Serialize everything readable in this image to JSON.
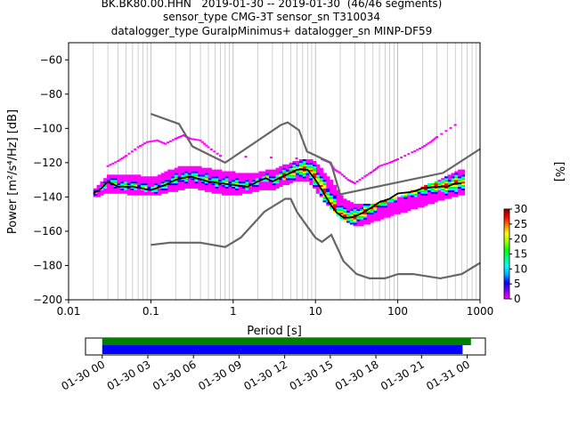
{
  "title_lines": [
    "BK.BK80.00.HHN   2019-01-30 -- 2019-01-30  (46/46 segments)",
    "sensor_type CMG-3T sensor_sn T310034",
    "datalogger_type GuralpMinimus+ datalogger_sn MINP-DF59"
  ],
  "chart_data": {
    "type": "heatmap",
    "title": "BK.BK80.00.HHN   2019-01-30 -- 2019-01-30  (46/46 segments)",
    "xlabel": "Period [s]",
    "ylabel": "Power [m²/s⁴/Hz] [dB]",
    "xscale": "log",
    "xlim": [
      0.01,
      1000
    ],
    "ylim": [
      -200,
      -50
    ],
    "xticks": [
      0.01,
      0.1,
      1,
      10,
      100,
      1000
    ],
    "xtick_labels": [
      "0.01",
      "0.1",
      "1",
      "10",
      "100",
      "1000"
    ],
    "yticks": [
      -60,
      -80,
      -100,
      -120,
      -140,
      -160,
      -180,
      -200
    ],
    "ytick_labels": [
      "−60",
      "−80",
      "−100",
      "−120",
      "−140",
      "−160",
      "−180",
      "−200"
    ],
    "grid": "x-minor",
    "colorbar": {
      "label": "[%]",
      "min": 0,
      "max": 30,
      "ticks": [
        "0",
        "5",
        "10",
        "15",
        "20",
        "25",
        "30"
      ],
      "colors": [
        "#ffffff",
        "#ff00ff",
        "#0000ff",
        "#00ffff",
        "#00ff00",
        "#ffff00",
        "#ff0000",
        "#800000"
      ]
    },
    "mean_curve": {
      "color": "#000000",
      "x": [
        0.02,
        0.025,
        0.03,
        0.04,
        0.06,
        0.1,
        0.15,
        0.2,
        0.3,
        0.5,
        1,
        1.5,
        2,
        2.5,
        3,
        4,
        5,
        6,
        8,
        10,
        12,
        15,
        18,
        22,
        28,
        35,
        45,
        60,
        80,
        100,
        150,
        200,
        300,
        400,
        500,
        600
      ],
      "y": [
        -138,
        -135,
        -131,
        -134,
        -134,
        -136,
        -133,
        -130,
        -128,
        -131,
        -133,
        -134,
        -131,
        -129,
        -131,
        -128,
        -126,
        -124,
        -124,
        -130,
        -136,
        -144,
        -149,
        -152,
        -152,
        -150,
        -147,
        -143,
        -141,
        -138,
        -137,
        -135,
        -134,
        -134,
        -132,
        -132
      ]
    },
    "noise_models": [
      {
        "name": "high-noise",
        "color": "#666666",
        "x": [
          0.1,
          0.22,
          0.32,
          0.8,
          3.8,
          4.6,
          6.3,
          7.9,
          15.4,
          20,
          354.8,
          1000
        ],
        "y": [
          -91.5,
          -97.4,
          -110.5,
          -120,
          -98,
          -96.5,
          -101,
          -113.5,
          -120,
          -138.5,
          -126,
          -112
        ]
      },
      {
        "name": "low-noise",
        "color": "#666666",
        "x": [
          0.1,
          0.17,
          0.4,
          0.8,
          1.24,
          2.4,
          4.3,
          5,
          6,
          10,
          12,
          15.6,
          21.9,
          31.6,
          45,
          70,
          101,
          154,
          328,
          600,
          1000
        ],
        "y": [
          -168,
          -166.7,
          -166.7,
          -169.2,
          -163.7,
          -148.6,
          -141.1,
          -141.1,
          -149,
          -163.8,
          -166.2,
          -162.1,
          -177.5,
          -185,
          -187.5,
          -187.5,
          -185,
          -185,
          -187.5,
          -185,
          -178.5
        ]
      }
    ],
    "heatmap_bands": [
      {
        "x": [
          0.02,
          0.03,
          0.05,
          0.1,
          0.2,
          0.3,
          0.5,
          1,
          2,
          3,
          5,
          8,
          10,
          15,
          20,
          30,
          50,
          100,
          200,
          300,
          500,
          650
        ],
        "y_low": [
          -140,
          -137,
          -138,
          -139,
          -136,
          -134,
          -137,
          -139,
          -136,
          -135,
          -131,
          -131,
          -137,
          -147,
          -153,
          -157,
          -154,
          -149,
          -145,
          -142,
          -139,
          -138
        ],
        "y_high": [
          -136,
          -128,
          -128,
          -130,
          -124,
          -123,
          -125,
          -127,
          -127,
          -125,
          -121,
          -119,
          -122,
          -132,
          -141,
          -146,
          -145,
          -141,
          -135,
          -132,
          -126,
          -125
        ]
      }
    ],
    "heatmap_scatter_upper": {
      "x": [
        0.03,
        0.04,
        0.05,
        0.07,
        0.09,
        0.12,
        0.15,
        0.2,
        0.25,
        0.3,
        0.4,
        0.5,
        0.7,
        12,
        15,
        17,
        20,
        25,
        30,
        40,
        50,
        60,
        80,
        100,
        150,
        200,
        250,
        300,
        500
      ],
      "y": [
        -122,
        -119,
        -116,
        -111,
        -108,
        -107,
        -109,
        -106,
        -104,
        -106,
        -107,
        -111,
        -116,
        -118,
        -120,
        -124,
        -126,
        -130,
        -132,
        -128,
        -125,
        -122,
        -120,
        -118,
        -114,
        -111,
        -108,
        -105,
        -98
      ]
    },
    "availability": {
      "xtick_labels": [
        "01-30 00",
        "01-30 03",
        "01-30 06",
        "01-30 09",
        "01-30 12",
        "01-30 15",
        "01-30 18",
        "01-30 21",
        "01-31 00"
      ],
      "green_color": "#008000",
      "blue_color": "#0000ff",
      "green_range_hours": [
        0,
        24.25
      ],
      "blue_range_hours": [
        0,
        23.7
      ],
      "range_hours": [
        -1.1,
        25.2
      ]
    }
  }
}
